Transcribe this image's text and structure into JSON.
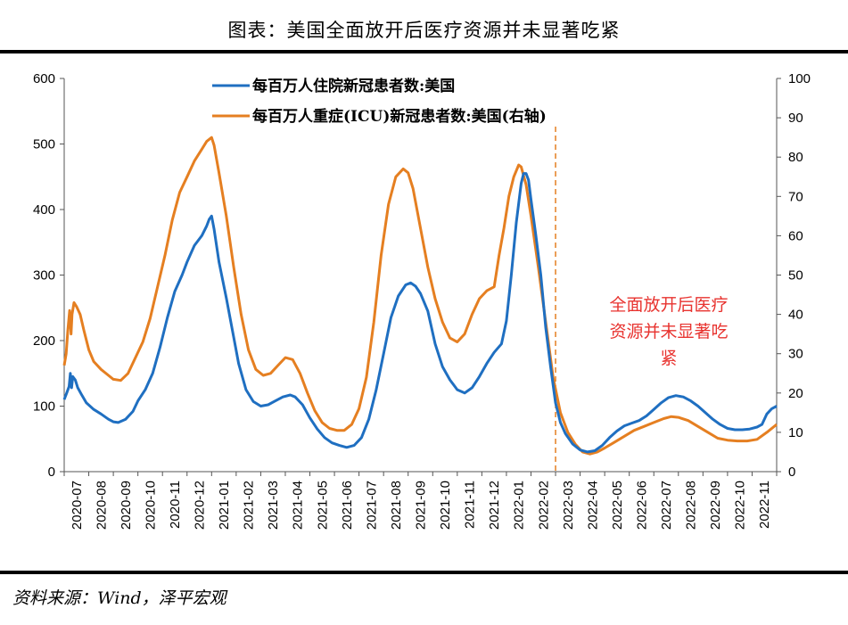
{
  "header": {
    "title": "图表：美国全面放开后医疗资源并未显著吃紧"
  },
  "footer": {
    "source": "资料来源：Wind，泽平宏观"
  },
  "colors": {
    "hosp": "#1f6fc1",
    "icu": "#e57f21",
    "annotation": "#e8332f",
    "axis": "#000000"
  },
  "chart_data": {
    "type": "line",
    "title": "图表：美国全面放开后医疗资源并未显著吃紧",
    "xlabel": "",
    "ylabel": "",
    "y2label": "",
    "ylim": [
      0,
      600
    ],
    "y2lim": [
      0,
      100
    ],
    "yticks": [
      "0",
      "100",
      "200",
      "300",
      "400",
      "500",
      "600"
    ],
    "y2ticks": [
      "0",
      "10",
      "20",
      "30",
      "40",
      "50",
      "60",
      "70",
      "80",
      "90",
      "100"
    ],
    "categories": [
      "2020-07",
      "2020-08",
      "2020-09",
      "2020-10",
      "2020-11",
      "2020-12",
      "2021-01",
      "2021-02",
      "2021-03",
      "2021-04",
      "2021-05",
      "2021-06",
      "2021-07",
      "2021-08",
      "2021-09",
      "2021-10",
      "2021-11",
      "2021-12",
      "2022-01",
      "2022-02",
      "2022-03",
      "2022-04",
      "2022-05",
      "2022-06",
      "2022-07",
      "2022-08",
      "2022-09",
      "2022-10",
      "2022-11"
    ],
    "series": [
      {
        "name": "每百万人住院新冠患者数:美国",
        "axis": "left",
        "points": [
          [
            0,
            110
          ],
          [
            0.1,
            120
          ],
          [
            0.2,
            130
          ],
          [
            0.25,
            150
          ],
          [
            0.3,
            128
          ],
          [
            0.35,
            145
          ],
          [
            0.45,
            140
          ],
          [
            0.55,
            128
          ],
          [
            0.7,
            118
          ],
          [
            0.9,
            105
          ],
          [
            1.2,
            95
          ],
          [
            1.5,
            88
          ],
          [
            1.8,
            80
          ],
          [
            2.0,
            76
          ],
          [
            2.2,
            75
          ],
          [
            2.5,
            80
          ],
          [
            2.8,
            92
          ],
          [
            3.0,
            108
          ],
          [
            3.3,
            125
          ],
          [
            3.6,
            150
          ],
          [
            3.9,
            190
          ],
          [
            4.2,
            235
          ],
          [
            4.5,
            275
          ],
          [
            4.8,
            300
          ],
          [
            5.0,
            320
          ],
          [
            5.3,
            345
          ],
          [
            5.6,
            360
          ],
          [
            5.8,
            375
          ],
          [
            5.9,
            385
          ],
          [
            6.0,
            390
          ],
          [
            6.1,
            370
          ],
          [
            6.3,
            320
          ],
          [
            6.6,
            265
          ],
          [
            6.9,
            205
          ],
          [
            7.1,
            165
          ],
          [
            7.4,
            125
          ],
          [
            7.7,
            107
          ],
          [
            8.0,
            100
          ],
          [
            8.3,
            102
          ],
          [
            8.6,
            108
          ],
          [
            8.9,
            114
          ],
          [
            9.2,
            117
          ],
          [
            9.4,
            114
          ],
          [
            9.7,
            102
          ],
          [
            10.0,
            82
          ],
          [
            10.3,
            65
          ],
          [
            10.6,
            52
          ],
          [
            10.9,
            44
          ],
          [
            11.2,
            40
          ],
          [
            11.5,
            37
          ],
          [
            11.8,
            40
          ],
          [
            12.1,
            52
          ],
          [
            12.4,
            80
          ],
          [
            12.7,
            125
          ],
          [
            13.0,
            180
          ],
          [
            13.3,
            235
          ],
          [
            13.6,
            268
          ],
          [
            13.9,
            285
          ],
          [
            14.1,
            288
          ],
          [
            14.3,
            283
          ],
          [
            14.5,
            272
          ],
          [
            14.8,
            245
          ],
          [
            15.1,
            195
          ],
          [
            15.4,
            160
          ],
          [
            15.7,
            140
          ],
          [
            16.0,
            125
          ],
          [
            16.3,
            120
          ],
          [
            16.6,
            128
          ],
          [
            16.9,
            145
          ],
          [
            17.2,
            165
          ],
          [
            17.5,
            182
          ],
          [
            17.8,
            195
          ],
          [
            18.0,
            230
          ],
          [
            18.2,
            300
          ],
          [
            18.4,
            380
          ],
          [
            18.6,
            440
          ],
          [
            18.7,
            455
          ],
          [
            18.8,
            455
          ],
          [
            18.9,
            445
          ],
          [
            19.0,
            415
          ],
          [
            19.2,
            360
          ],
          [
            19.4,
            300
          ],
          [
            19.6,
            220
          ],
          [
            19.8,
            160
          ],
          [
            20.0,
            105
          ],
          [
            20.2,
            75
          ],
          [
            20.4,
            58
          ],
          [
            20.7,
            42
          ],
          [
            21.0,
            33
          ],
          [
            21.3,
            30
          ],
          [
            21.6,
            32
          ],
          [
            21.9,
            40
          ],
          [
            22.2,
            52
          ],
          [
            22.5,
            62
          ],
          [
            22.8,
            70
          ],
          [
            23.1,
            74
          ],
          [
            23.4,
            78
          ],
          [
            23.7,
            85
          ],
          [
            24.0,
            95
          ],
          [
            24.3,
            105
          ],
          [
            24.6,
            113
          ],
          [
            24.9,
            116
          ],
          [
            25.2,
            114
          ],
          [
            25.5,
            108
          ],
          [
            25.8,
            100
          ],
          [
            26.1,
            90
          ],
          [
            26.4,
            80
          ],
          [
            26.7,
            72
          ],
          [
            27.0,
            66
          ],
          [
            27.3,
            64
          ],
          [
            27.6,
            64
          ],
          [
            27.9,
            65
          ],
          [
            28.2,
            68
          ],
          [
            28.4,
            72
          ],
          [
            28.6,
            88
          ],
          [
            28.8,
            96
          ],
          [
            29.0,
            100
          ]
        ]
      },
      {
        "name": "每百万人重症(ICU)新冠患者数:美国(右轴)",
        "axis": "right",
        "points": [
          [
            0,
            27
          ],
          [
            0.08,
            30
          ],
          [
            0.15,
            36
          ],
          [
            0.22,
            41
          ],
          [
            0.28,
            35
          ],
          [
            0.32,
            40
          ],
          [
            0.4,
            43
          ],
          [
            0.5,
            42
          ],
          [
            0.65,
            40
          ],
          [
            0.8,
            36
          ],
          [
            1.0,
            31
          ],
          [
            1.2,
            28
          ],
          [
            1.5,
            26
          ],
          [
            1.8,
            24.5
          ],
          [
            2.0,
            23.5
          ],
          [
            2.3,
            23.2
          ],
          [
            2.6,
            25
          ],
          [
            2.9,
            29
          ],
          [
            3.2,
            33
          ],
          [
            3.5,
            39
          ],
          [
            3.8,
            47
          ],
          [
            4.1,
            55
          ],
          [
            4.4,
            64
          ],
          [
            4.7,
            71
          ],
          [
            5.0,
            75
          ],
          [
            5.3,
            79
          ],
          [
            5.6,
            82
          ],
          [
            5.8,
            84
          ],
          [
            6.0,
            85
          ],
          [
            6.1,
            83
          ],
          [
            6.3,
            76
          ],
          [
            6.6,
            65
          ],
          [
            6.9,
            52
          ],
          [
            7.2,
            40
          ],
          [
            7.5,
            31
          ],
          [
            7.8,
            26
          ],
          [
            8.1,
            24.5
          ],
          [
            8.4,
            25
          ],
          [
            8.7,
            27
          ],
          [
            9.0,
            29
          ],
          [
            9.3,
            28.5
          ],
          [
            9.6,
            25
          ],
          [
            9.9,
            20
          ],
          [
            10.2,
            15.5
          ],
          [
            10.5,
            12.5
          ],
          [
            10.8,
            11
          ],
          [
            11.1,
            10.5
          ],
          [
            11.4,
            10.5
          ],
          [
            11.7,
            12
          ],
          [
            12.0,
            16
          ],
          [
            12.3,
            24
          ],
          [
            12.6,
            38
          ],
          [
            12.9,
            55
          ],
          [
            13.2,
            68
          ],
          [
            13.5,
            75
          ],
          [
            13.8,
            77
          ],
          [
            14.0,
            76
          ],
          [
            14.2,
            72
          ],
          [
            14.5,
            62
          ],
          [
            14.8,
            52
          ],
          [
            15.1,
            44
          ],
          [
            15.4,
            38
          ],
          [
            15.7,
            34
          ],
          [
            16.0,
            33
          ],
          [
            16.3,
            35
          ],
          [
            16.6,
            40
          ],
          [
            16.9,
            44
          ],
          [
            17.2,
            46
          ],
          [
            17.5,
            47
          ],
          [
            17.7,
            55
          ],
          [
            17.9,
            62
          ],
          [
            18.1,
            70
          ],
          [
            18.3,
            75
          ],
          [
            18.5,
            78
          ],
          [
            18.6,
            77.5
          ],
          [
            18.8,
            73
          ],
          [
            19.0,
            65
          ],
          [
            19.3,
            52
          ],
          [
            19.6,
            38
          ],
          [
            19.9,
            24
          ],
          [
            20.2,
            15
          ],
          [
            20.5,
            10
          ],
          [
            20.8,
            7
          ],
          [
            21.1,
            5
          ],
          [
            21.4,
            4.5
          ],
          [
            21.7,
            5
          ],
          [
            22.0,
            6
          ],
          [
            22.4,
            7.5
          ],
          [
            22.8,
            9
          ],
          [
            23.2,
            10.5
          ],
          [
            23.6,
            11.5
          ],
          [
            24.0,
            12.5
          ],
          [
            24.4,
            13.5
          ],
          [
            24.7,
            14
          ],
          [
            25.0,
            13.8
          ],
          [
            25.4,
            13
          ],
          [
            25.8,
            11.5
          ],
          [
            26.2,
            10
          ],
          [
            26.6,
            8.5
          ],
          [
            27.0,
            8
          ],
          [
            27.4,
            7.8
          ],
          [
            27.8,
            7.8
          ],
          [
            28.2,
            8.2
          ],
          [
            28.6,
            10
          ],
          [
            29.0,
            12
          ]
        ]
      }
    ],
    "vline": {
      "at": "2022-03",
      "position": 20.0,
      "style": "dashed"
    },
    "annotation": {
      "lines": [
        "全面放开后医疗",
        "资源并未显著吃",
        "紧"
      ]
    },
    "legend": "top-left"
  }
}
